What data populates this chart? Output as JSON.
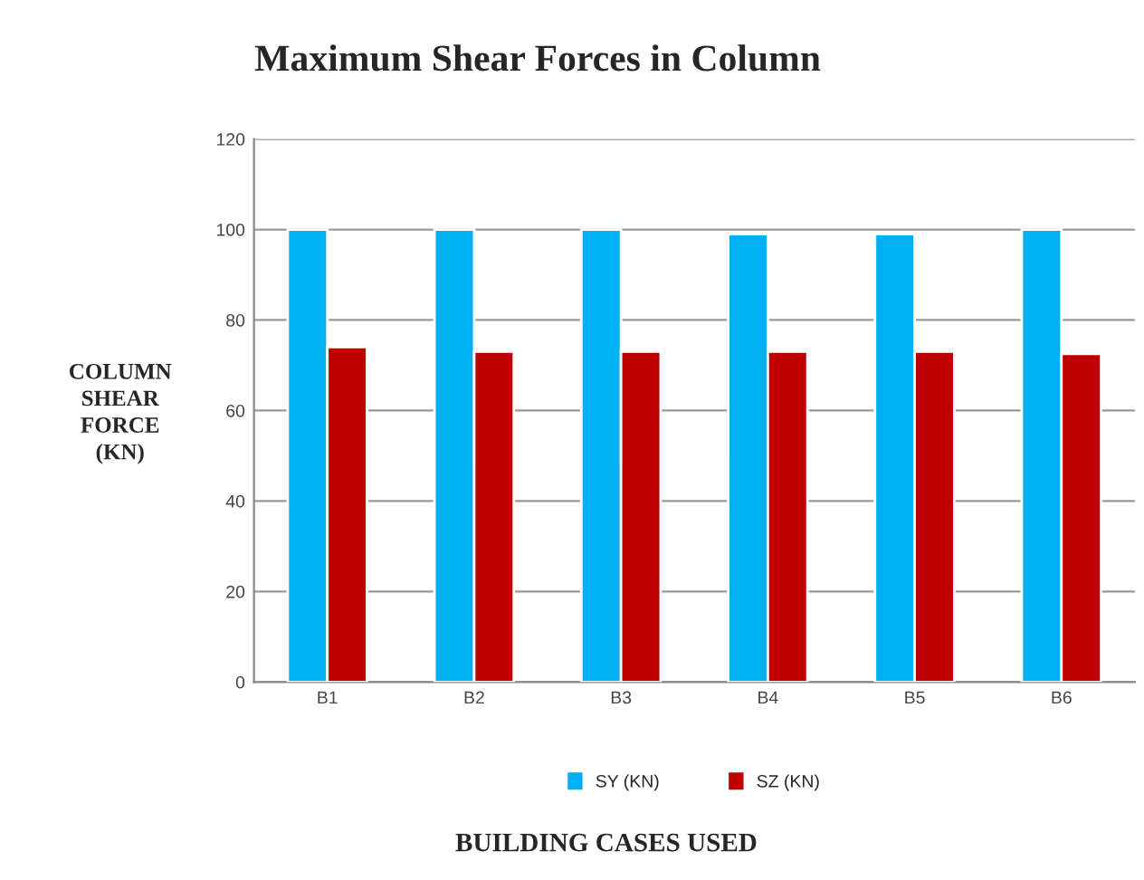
{
  "chart_data": {
    "type": "bar",
    "title": "Maximum Shear Forces in Column",
    "xlabel": "BUILDING CASES USED",
    "ylabel": "COLUMN\nSHEAR\nFORCE\n(KN)",
    "categories": [
      "B1",
      "B2",
      "B3",
      "B4",
      "B5",
      "B6"
    ],
    "series": [
      {
        "name": "SY (KN)",
        "color": "#00b0f0",
        "values": [
          100,
          100,
          100,
          99,
          99,
          100
        ]
      },
      {
        "name": "SZ (KN)",
        "color": "#c00000",
        "values": [
          74,
          73,
          73,
          73,
          73,
          72.5
        ]
      }
    ],
    "ylim": [
      0,
      120
    ],
    "yticks": [
      0,
      20,
      40,
      60,
      80,
      100,
      120
    ],
    "grid": "y",
    "legend": "bottom"
  }
}
